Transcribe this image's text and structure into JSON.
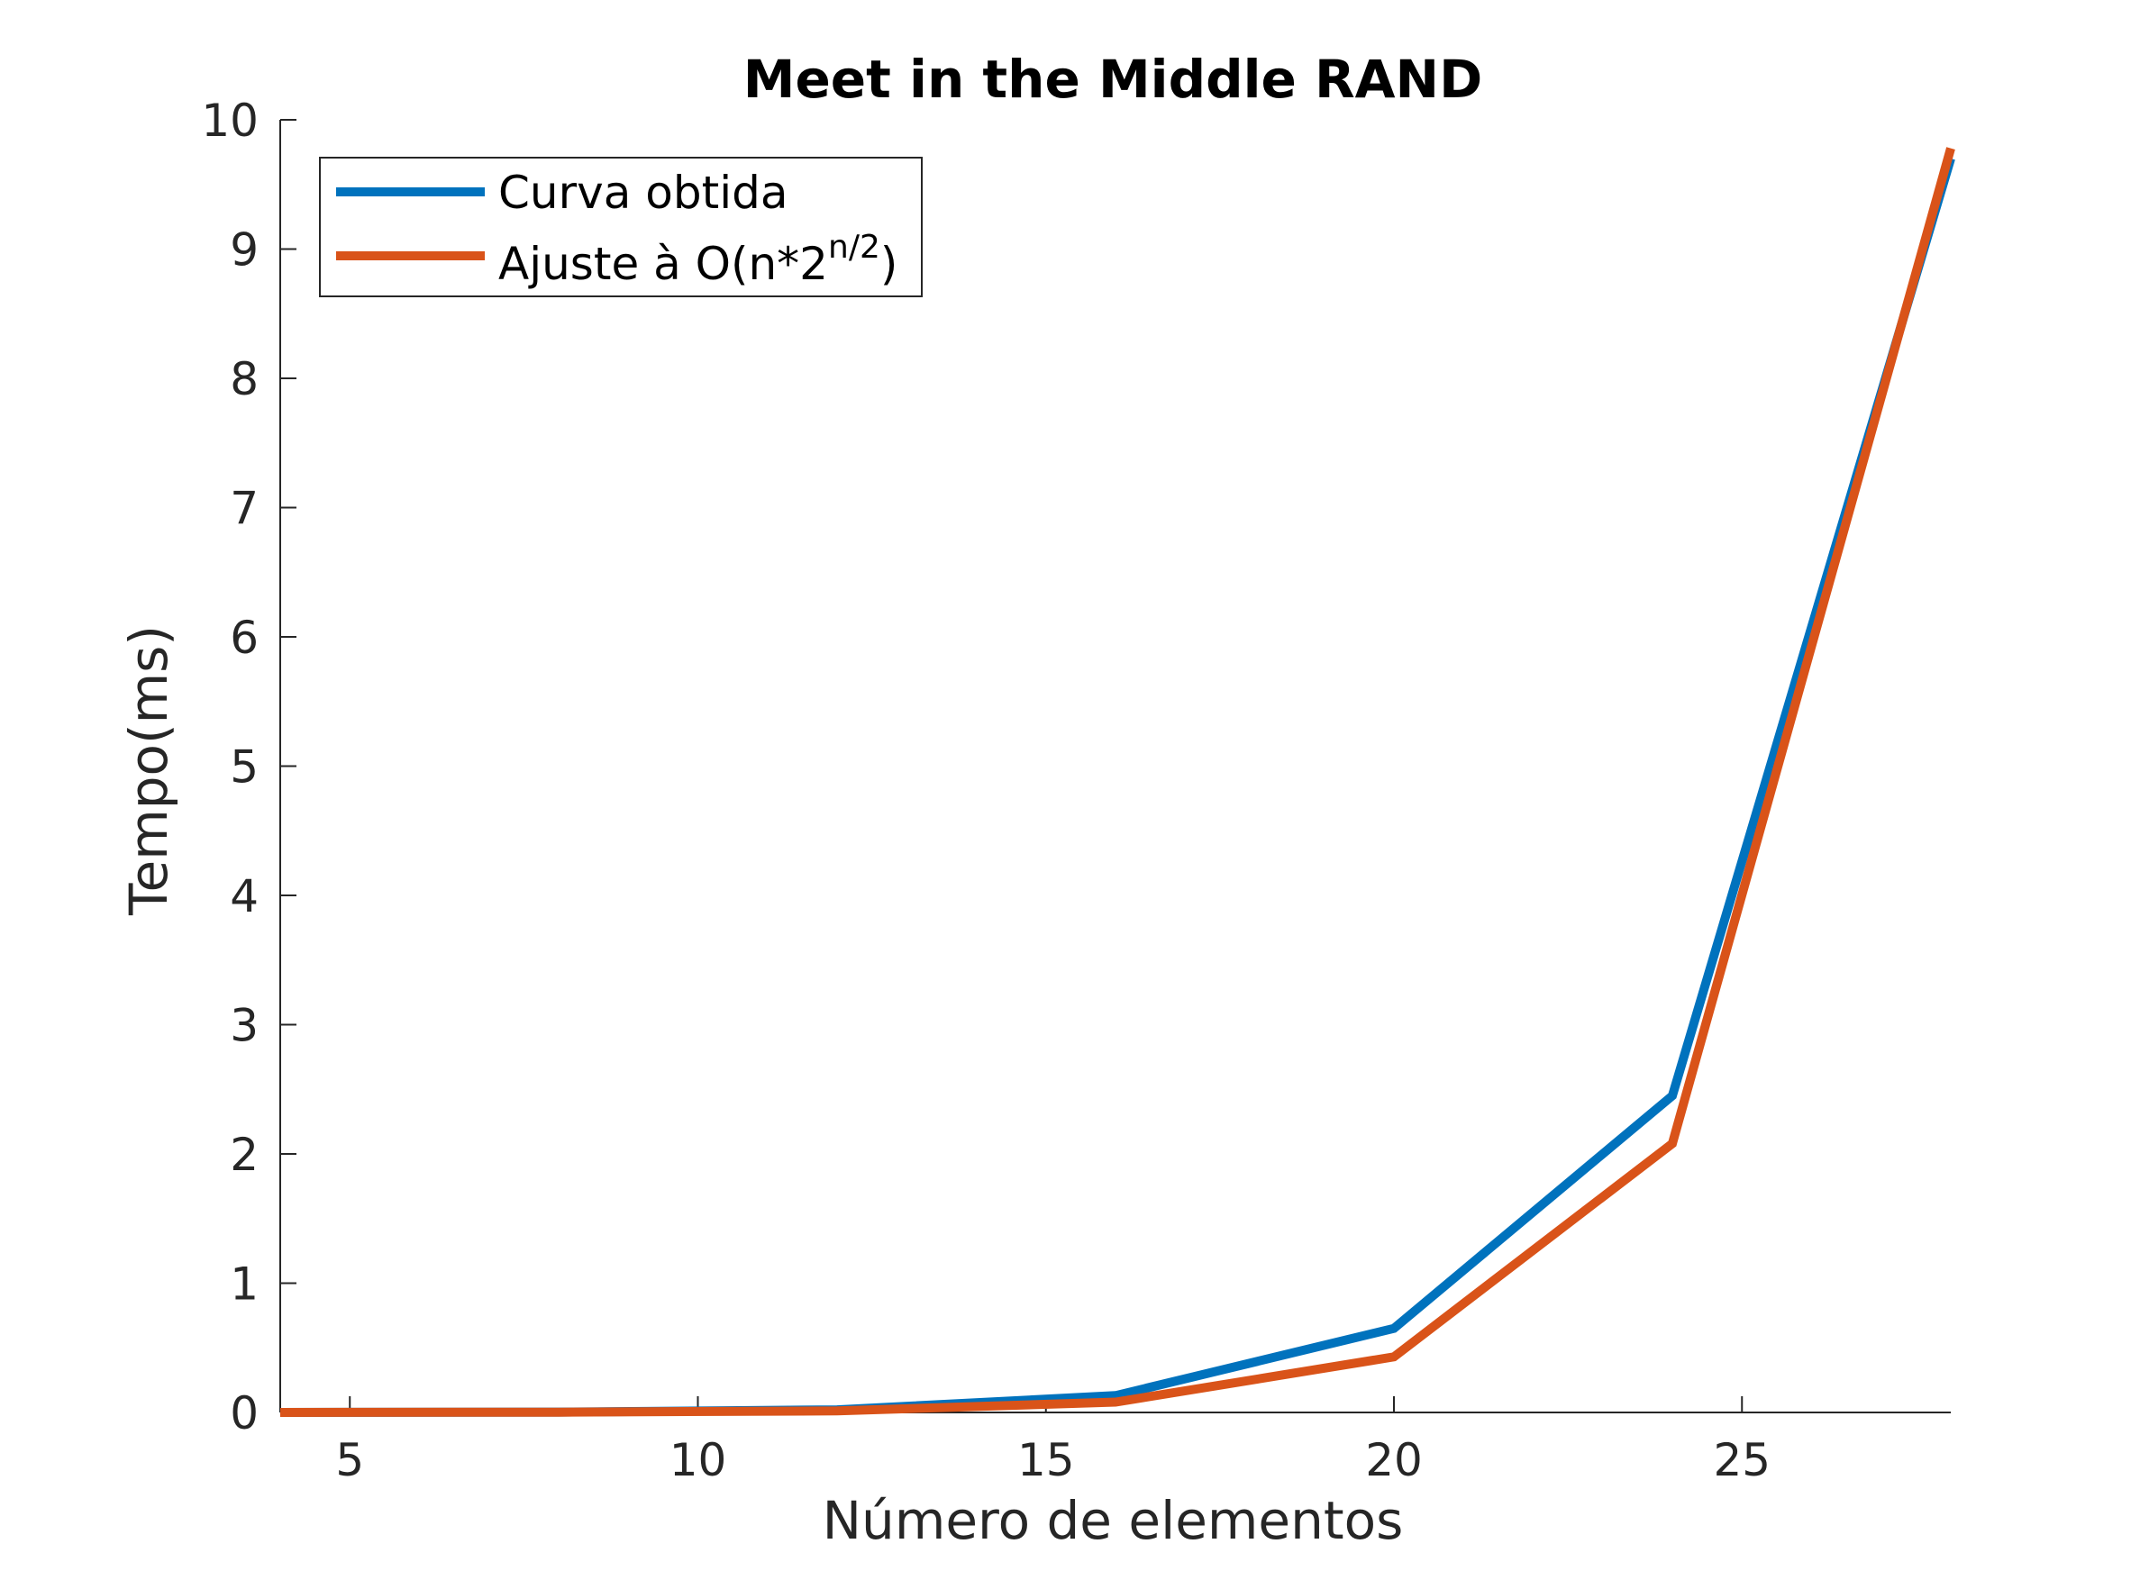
{
  "chart_data": {
    "type": "line",
    "title": "Meet in the Middle RAND",
    "xlabel": "Número de elementos",
    "ylabel": "Tempo(ms)",
    "xlim": [
      4,
      28
    ],
    "ylim": [
      0,
      10
    ],
    "xticks": [
      5,
      10,
      15,
      20,
      25
    ],
    "xtick_labels": [
      "5",
      "10",
      "15",
      "20",
      "25"
    ],
    "yticks": [
      0,
      1,
      2,
      3,
      4,
      5,
      6,
      7,
      8,
      9,
      10
    ],
    "ytick_labels": [
      "0",
      "1",
      "2",
      "3",
      "4",
      "5",
      "6",
      "7",
      "8",
      "9",
      "10"
    ],
    "grid": false,
    "legend_position": "top-left",
    "x": [
      4,
      8,
      12,
      16,
      20,
      24,
      28
    ],
    "series": [
      {
        "name": "Curva obtida",
        "color": "#0072BD",
        "values": [
          0.0,
          0.003,
          0.02,
          0.13,
          0.65,
          2.45,
          9.7
        ]
      },
      {
        "name": "Ajuste à O(n*2",
        "name_superscript": "n/2",
        "name_suffix": ")",
        "color": "#D95319",
        "values": [
          0.0,
          0.002,
          0.012,
          0.08,
          0.43,
          2.08,
          9.78
        ]
      }
    ]
  }
}
